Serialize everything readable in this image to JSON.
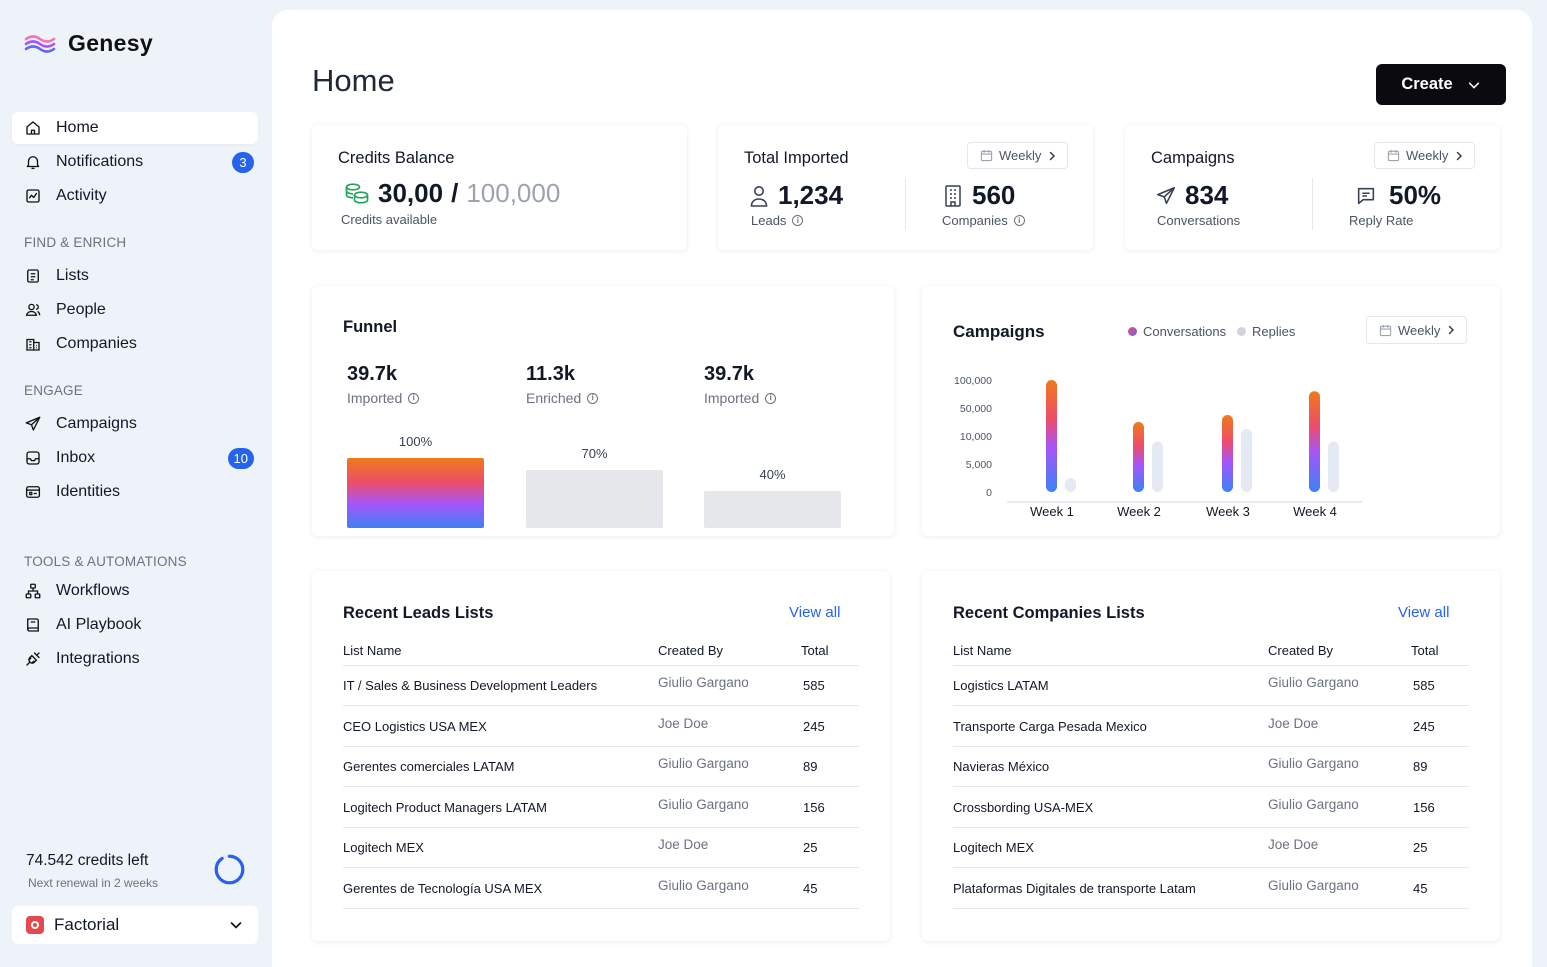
{
  "app": {
    "name": "Genesy"
  },
  "sidebar": {
    "main_items": [
      {
        "label": "Home",
        "icon": "home-icon",
        "active": true
      },
      {
        "label": "Notifications",
        "icon": "bell-icon",
        "badge": "3"
      },
      {
        "label": "Activity",
        "icon": "activity-icon"
      }
    ],
    "sections": [
      {
        "label": "FIND & ENRICH",
        "items": [
          {
            "label": "Lists",
            "icon": "list-icon"
          },
          {
            "label": "People",
            "icon": "people-icon"
          },
          {
            "label": "Companies",
            "icon": "building-icon"
          }
        ]
      },
      {
        "label": "ENGAGE",
        "items": [
          {
            "label": "Campaigns",
            "icon": "send-icon"
          },
          {
            "label": "Inbox",
            "icon": "inbox-icon",
            "badge": "10"
          },
          {
            "label": "Identities",
            "icon": "id-card-icon"
          }
        ]
      },
      {
        "label": "TOOLS & AUTOMATIONS",
        "items": [
          {
            "label": "Workflows",
            "icon": "workflow-icon"
          },
          {
            "label": "AI Playbook",
            "icon": "book-icon"
          },
          {
            "label": "Integrations",
            "icon": "plug-icon"
          }
        ]
      }
    ],
    "credits": {
      "left": "74.542 credits left",
      "renewal": "Next renewal in 2 weeks",
      "ring_fraction": 0.9
    },
    "workspace": {
      "name": "Factorial"
    }
  },
  "header": {
    "title": "Home",
    "create_label": "Create"
  },
  "stats": {
    "credits_balance": {
      "title": "Credits Balance",
      "used": "30,00",
      "separator": "/",
      "total": "100,000",
      "sub": "Credits available"
    },
    "total_imported": {
      "title": "Total Imported",
      "period": "Weekly",
      "leads_value": "1,234",
      "leads_label": "Leads",
      "companies_value": "560",
      "companies_label": "Companies"
    },
    "campaigns": {
      "title": "Campaigns",
      "period": "Weekly",
      "conversations_value": "834",
      "conversations_label": "Conversations",
      "reply_value": "50%",
      "reply_label": "Reply Rate"
    }
  },
  "funnel": {
    "title": "Funnel",
    "stages": [
      {
        "value": "39.7k",
        "label": "Imported",
        "pct": "100%",
        "fraction": 1.0
      },
      {
        "value": "11.3k",
        "label": "Enriched",
        "pct": "70%",
        "fraction": 0.83
      },
      {
        "value": "39.7k",
        "label": "Imported",
        "pct": "40%",
        "fraction": 0.53
      }
    ]
  },
  "campaigns_chart": {
    "title": "Campaigns",
    "period": "Weekly",
    "legend": [
      "Conversations",
      "Replies"
    ]
  },
  "chart_data": {
    "type": "bar",
    "title": "Campaigns",
    "categories": [
      "Week 1",
      "Week 2",
      "Week 3",
      "Week 4"
    ],
    "y_tick_labels": [
      "100,000",
      "50,000",
      "10,000",
      "5,000",
      "0"
    ],
    "y_scale": "non-linear (tick labels evenly spaced)",
    "series": [
      {
        "name": "Conversations",
        "values": [
          100000,
          30000,
          40000,
          80000
        ]
      },
      {
        "name": "Replies",
        "values": [
          2500,
          9000,
          20000,
          9000
        ]
      }
    ]
  },
  "leads_lists": {
    "title": "Recent Leads Lists",
    "view_all": "View all",
    "columns": [
      "List Name",
      "Created By",
      "Total"
    ],
    "rows": [
      [
        "IT / Sales & Business Development Leaders",
        "Giulio Gargano",
        "585"
      ],
      [
        "CEO Logistics USA MEX",
        "Joe Doe",
        "245"
      ],
      [
        "Gerentes comerciales LATAM",
        "Giulio Gargano",
        "89"
      ],
      [
        "Logitech Product Managers  LATAM",
        "Giulio Gargano",
        "156"
      ],
      [
        "Logitech MEX",
        "Joe Doe",
        "25"
      ],
      [
        "Gerentes de Tecnología USA MEX",
        "Giulio Gargano",
        "45"
      ]
    ]
  },
  "companies_lists": {
    "title": "Recent Companies Lists",
    "view_all": "View all",
    "columns": [
      "List Name",
      "Created By",
      "Total"
    ],
    "rows": [
      [
        "Logistics LATAM",
        "Giulio Gargano",
        "585"
      ],
      [
        "Transporte Carga Pesada Mexico",
        "Joe Doe",
        "245"
      ],
      [
        "Navieras México",
        "Giulio Gargano",
        "89"
      ],
      [
        "Crossbording USA-MEX",
        "Giulio Gargano",
        "156"
      ],
      [
        "Logitech MEX",
        "Joe Doe",
        "25"
      ],
      [
        "Plataformas Digitales de transporte Latam",
        "Giulio Gargano",
        "45"
      ]
    ]
  },
  "colors": {
    "accent": "#2563EB",
    "bar_orange": "#F07A1A",
    "bar_purple": "#A855F7",
    "bar_blue": "#3B82F6",
    "replies": "#E5E9F2"
  }
}
